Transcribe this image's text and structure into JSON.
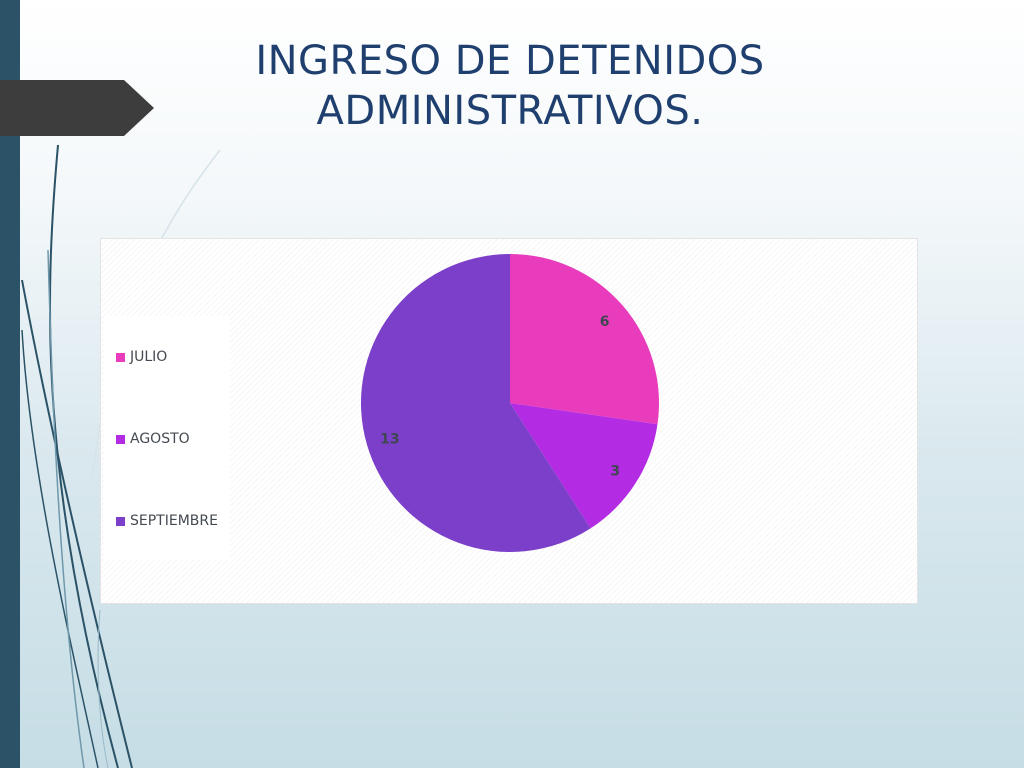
{
  "slide": {
    "title_line1": "INGRESO DE DETENIDOS",
    "title_line2": "ADMINISTRATIVOS."
  },
  "colors": {
    "title": "#1f3f6e",
    "left_bar": "#2b5267",
    "arrow_tab": "#3d3d3d"
  },
  "chart_data": {
    "type": "pie",
    "title": "",
    "categories": [
      "JULIO",
      "AGOSTO",
      "SEPTIEMBRE"
    ],
    "values": [
      6,
      3,
      13
    ],
    "colors": [
      "#e83cbd",
      "#b32be3",
      "#7b3fc9"
    ],
    "legend_position": "left",
    "grid": false
  }
}
